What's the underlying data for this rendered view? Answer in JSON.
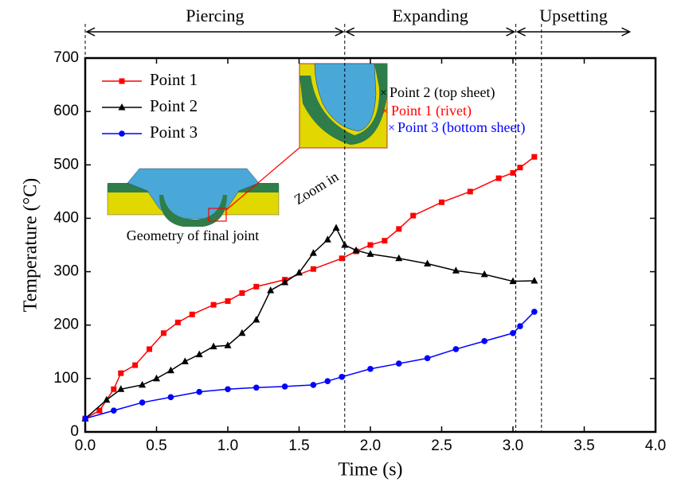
{
  "chart_data": {
    "type": "line",
    "x_label": "Time (s)",
    "y_label": "Temperature (°C)",
    "xlim": [
      0,
      4
    ],
    "ylim": [
      0,
      700
    ],
    "xticks": [
      {
        "value": 0,
        "label": "0.0"
      },
      {
        "value": 0.5,
        "label": "0.5"
      },
      {
        "value": 1,
        "label": "1.0"
      },
      {
        "value": 1.5,
        "label": "1.5"
      },
      {
        "value": 2,
        "label": "2.0"
      },
      {
        "value": 2.5,
        "label": "2.5"
      },
      {
        "value": 3,
        "label": "3.0"
      },
      {
        "value": 3.5,
        "label": "3.5"
      },
      {
        "value": 4,
        "label": "4.0"
      }
    ],
    "yticks": [
      0,
      100,
      200,
      300,
      400,
      500,
      600,
      700
    ],
    "legend": "upper-left",
    "phases": [
      {
        "label": "Piercing",
        "start": 0,
        "end": 1.82
      },
      {
        "label": "Expanding",
        "start": 1.82,
        "end": 3.02
      },
      {
        "label": "Upsetting",
        "start": 3.02,
        "end": 3.83
      }
    ],
    "phase_boundaries": [
      1.82,
      3.02,
      3.2
    ],
    "series": [
      {
        "name": "Point 1",
        "color": "#ff0000",
        "marker": "square",
        "x": [
          0,
          0.1,
          0.2,
          0.25,
          0.35,
          0.45,
          0.55,
          0.65,
          0.75,
          0.9,
          1.0,
          1.1,
          1.2,
          1.4,
          1.6,
          1.8,
          1.9,
          2.0,
          2.1,
          2.2,
          2.3,
          2.5,
          2.7,
          2.9,
          3.0,
          3.05,
          3.15
        ],
        "values": [
          25,
          40,
          80,
          110,
          125,
          155,
          185,
          205,
          220,
          238,
          245,
          260,
          272,
          285,
          305,
          325,
          338,
          350,
          358,
          380,
          405,
          430,
          450,
          475,
          485,
          495,
          515
        ]
      },
      {
        "name": "Point 2",
        "color": "#000000",
        "marker": "triangle",
        "x": [
          0,
          0.15,
          0.25,
          0.4,
          0.5,
          0.6,
          0.7,
          0.8,
          0.9,
          1.0,
          1.1,
          1.2,
          1.3,
          1.4,
          1.5,
          1.6,
          1.7,
          1.76,
          1.82,
          1.9,
          2.0,
          2.2,
          2.4,
          2.6,
          2.8,
          3.0,
          3.15
        ],
        "values": [
          25,
          60,
          80,
          88,
          100,
          115,
          132,
          145,
          160,
          162,
          185,
          210,
          265,
          280,
          298,
          335,
          360,
          382,
          350,
          340,
          333,
          325,
          315,
          302,
          295,
          282,
          283
        ]
      },
      {
        "name": "Point 3",
        "color": "#0000ff",
        "marker": "circle",
        "x": [
          0,
          0.2,
          0.4,
          0.6,
          0.8,
          1.0,
          1.2,
          1.4,
          1.6,
          1.7,
          1.8,
          2.0,
          2.2,
          2.4,
          2.6,
          2.8,
          3.0,
          3.05,
          3.15
        ],
        "values": [
          25,
          40,
          55,
          65,
          75,
          80,
          83,
          85,
          88,
          95,
          103,
          118,
          128,
          138,
          155,
          170,
          185,
          198,
          225
        ]
      }
    ],
    "annotations": [
      {
        "text": "Geometry of final joint",
        "color": "#000000"
      },
      {
        "text": "Zoom in",
        "color": "#000000"
      },
      {
        "text": "Point 2 (top sheet)",
        "color": "#000000"
      },
      {
        "text": "Point 1 (rivet)",
        "color": "#ff0000"
      },
      {
        "text": "Point 3 (bottom sheet)",
        "color": "#0000ff"
      }
    ]
  }
}
